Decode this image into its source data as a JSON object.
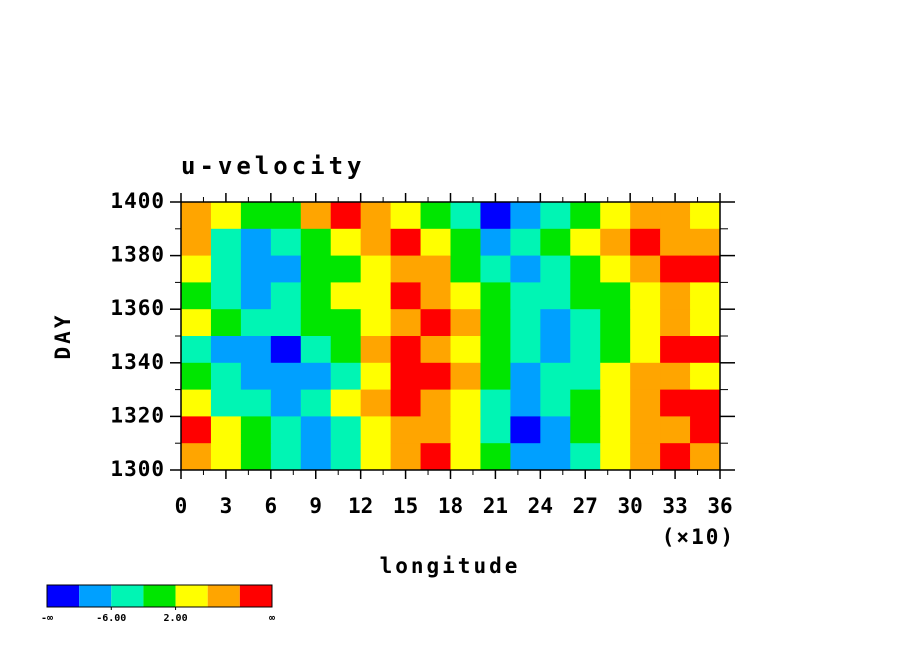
{
  "chart_data": {
    "type": "heatmap",
    "title": "u-velocity",
    "x_label": "longitude",
    "x_multiplier": "(×10)",
    "y_label": "DAY",
    "xlim": [
      0,
      36
    ],
    "xticks": [
      0,
      3,
      6,
      9,
      12,
      15,
      18,
      21,
      24,
      27,
      30,
      33,
      36
    ],
    "ylim": [
      1300,
      1400
    ],
    "yticks": [
      1300,
      1320,
      1340,
      1360,
      1380,
      1400
    ],
    "x": [
      1,
      3,
      5,
      7,
      9,
      11,
      13,
      15,
      17,
      19,
      21,
      23,
      25,
      27,
      29,
      31,
      33,
      35
    ],
    "y": [
      1395,
      1385,
      1375,
      1365,
      1355,
      1345,
      1335,
      1325,
      1315,
      1305
    ],
    "z": [
      [
        6,
        2,
        -1,
        0,
        8,
        12,
        7,
        3,
        0,
        -5,
        -11,
        -8,
        -3,
        0,
        4,
        6,
        8,
        4
      ],
      [
        8,
        -3,
        -7,
        -4,
        0,
        3,
        6,
        11,
        4,
        -2,
        -8,
        -6,
        -2,
        3,
        6,
        12,
        9,
        6
      ],
      [
        2,
        -4,
        -8,
        -9,
        -2,
        0,
        5,
        8,
        6,
        0,
        -3,
        -7,
        -4,
        0,
        3,
        8,
        12,
        10
      ],
      [
        -1,
        -5,
        -7,
        -3,
        -2,
        2,
        4,
        12,
        8,
        3,
        -2,
        -6,
        -5,
        -2,
        0,
        4,
        7,
        5
      ],
      [
        4,
        0,
        -3,
        -6,
        -2,
        0,
        3,
        7,
        10,
        6,
        0,
        -4,
        -7,
        -3,
        0,
        3,
        6,
        4
      ],
      [
        -3,
        -7,
        -9,
        -11,
        -4,
        0,
        6,
        12,
        9,
        3,
        -2,
        -6,
        -8,
        -5,
        0,
        5,
        10,
        12
      ],
      [
        -2,
        -5,
        -8,
        -10,
        -7,
        -3,
        3,
        11,
        12,
        7,
        -1,
        -7,
        -6,
        -3,
        2,
        6,
        9,
        5
      ],
      [
        5,
        -4,
        -6,
        -8,
        -6,
        2,
        7,
        12,
        8,
        4,
        -5,
        -9,
        -4,
        0,
        4,
        7,
        12,
        10
      ],
      [
        10,
        3,
        -2,
        -5,
        -7,
        -3,
        4,
        8,
        6,
        2,
        -4,
        -11,
        -8,
        -2,
        3,
        8,
        6,
        12
      ],
      [
        6,
        3,
        0,
        -3,
        -8,
        -5,
        3,
        6,
        11,
        4,
        -2,
        -7,
        -9,
        -3,
        2,
        7,
        10,
        8
      ]
    ],
    "colors": [
      "#0000ff",
      "#00a0ff",
      "#00f5b4",
      "#00e600",
      "#ffff00",
      "#ffa500",
      "#ff0000"
    ],
    "colorbar_ticks": [
      {
        "value": -6,
        "label": "-6.00"
      },
      {
        "value": 2,
        "label": "2.00"
      }
    ],
    "colorbar_ends": [
      "-∞",
      "∞"
    ]
  }
}
